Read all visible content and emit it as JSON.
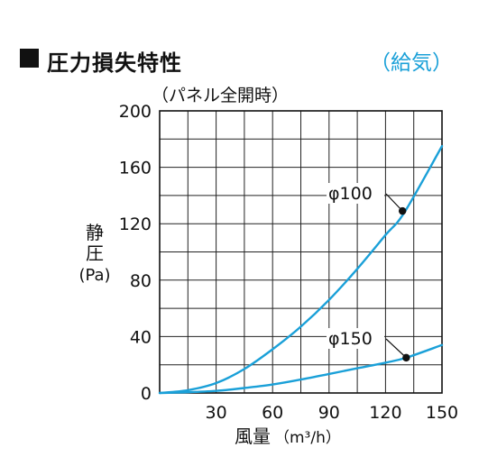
{
  "header": {
    "title": "圧力損失特性",
    "mode": "（給気）"
  },
  "chart_data": {
    "type": "line",
    "condition": "（パネル全開時）",
    "xlabel_main": "風量",
    "xlabel_unit": "（m³/h）",
    "ylabel_lines": [
      "静",
      "圧",
      "(Pa)"
    ],
    "xlim": [
      0,
      150
    ],
    "ylim": [
      0,
      200
    ],
    "x_ticks": [
      30,
      60,
      90,
      120,
      150
    ],
    "y_ticks": [
      0,
      40,
      80,
      120,
      160,
      200
    ],
    "x_grid_step": 15,
    "y_grid_step": 20,
    "grid": true,
    "curve_color": "#1aa0d8",
    "series": [
      {
        "name": "φ100",
        "x": [
          0,
          15,
          30,
          45,
          60,
          75,
          90,
          105,
          120,
          130,
          150
        ],
        "y": [
          0,
          2,
          7,
          17,
          31,
          47,
          66,
          88,
          112,
          128,
          175
        ],
        "marker": {
          "x": 129,
          "y": 129
        }
      },
      {
        "name": "φ150",
        "x": [
          0,
          15,
          30,
          45,
          60,
          75,
          90,
          105,
          120,
          131,
          150
        ],
        "y": [
          0,
          0.5,
          1.5,
          3.5,
          6,
          9.5,
          13.5,
          17.5,
          21.5,
          25,
          34
        ],
        "marker": {
          "x": 131,
          "y": 25
        }
      }
    ]
  }
}
